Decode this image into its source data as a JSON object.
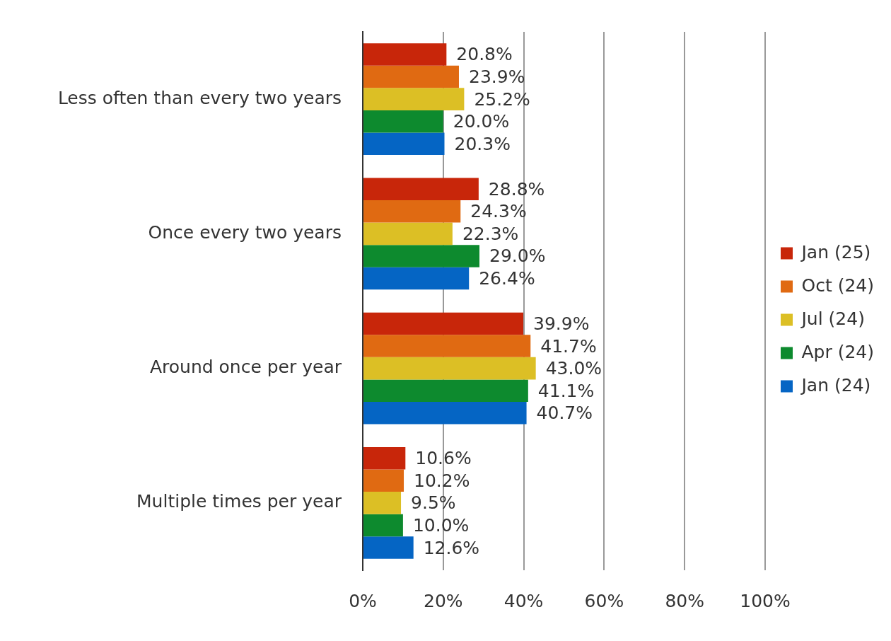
{
  "chart_data": {
    "type": "bar",
    "orientation": "horizontal",
    "categories": [
      "Less often than every two years",
      "Once every two years",
      "Around once per year",
      "Multiple times per year"
    ],
    "series": [
      {
        "name": "Jan (25)",
        "color": "#c8260a",
        "values": [
          20.8,
          28.8,
          39.9,
          10.6
        ]
      },
      {
        "name": "Oct (24)",
        "color": "#e06a12",
        "values": [
          23.9,
          24.3,
          41.7,
          10.2
        ]
      },
      {
        "name": "Jul (24)",
        "color": "#dcbf25",
        "values": [
          25.2,
          22.3,
          43.0,
          9.5
        ]
      },
      {
        "name": "Apr (24)",
        "color": "#0d8a2e",
        "values": [
          20.0,
          29.0,
          41.1,
          10.0
        ]
      },
      {
        "name": "Jan (24)",
        "color": "#0565c4",
        "values": [
          20.3,
          26.4,
          40.7,
          12.6
        ]
      }
    ],
    "xlim": [
      0,
      100
    ],
    "xticks": [
      {
        "value": 0,
        "label": "0%"
      },
      {
        "value": 20,
        "label": "20%"
      },
      {
        "value": 40,
        "label": "40%"
      },
      {
        "value": 60,
        "label": "60%"
      },
      {
        "value": 80,
        "label": "80%"
      },
      {
        "value": 100,
        "label": "100%"
      }
    ],
    "value_labels": [
      [
        "20.8%",
        "28.8%",
        "39.9%",
        "10.6%"
      ],
      [
        "23.9%",
        "24.3%",
        "41.7%",
        "10.2%"
      ],
      [
        "25.2%",
        "22.3%",
        "43.0%",
        "9.5%"
      ],
      [
        "20.0%",
        "29.0%",
        "41.1%",
        "10.0%"
      ],
      [
        "20.3%",
        "26.4%",
        "40.7%",
        "12.6%"
      ]
    ],
    "grid": "x",
    "legend": "right"
  }
}
